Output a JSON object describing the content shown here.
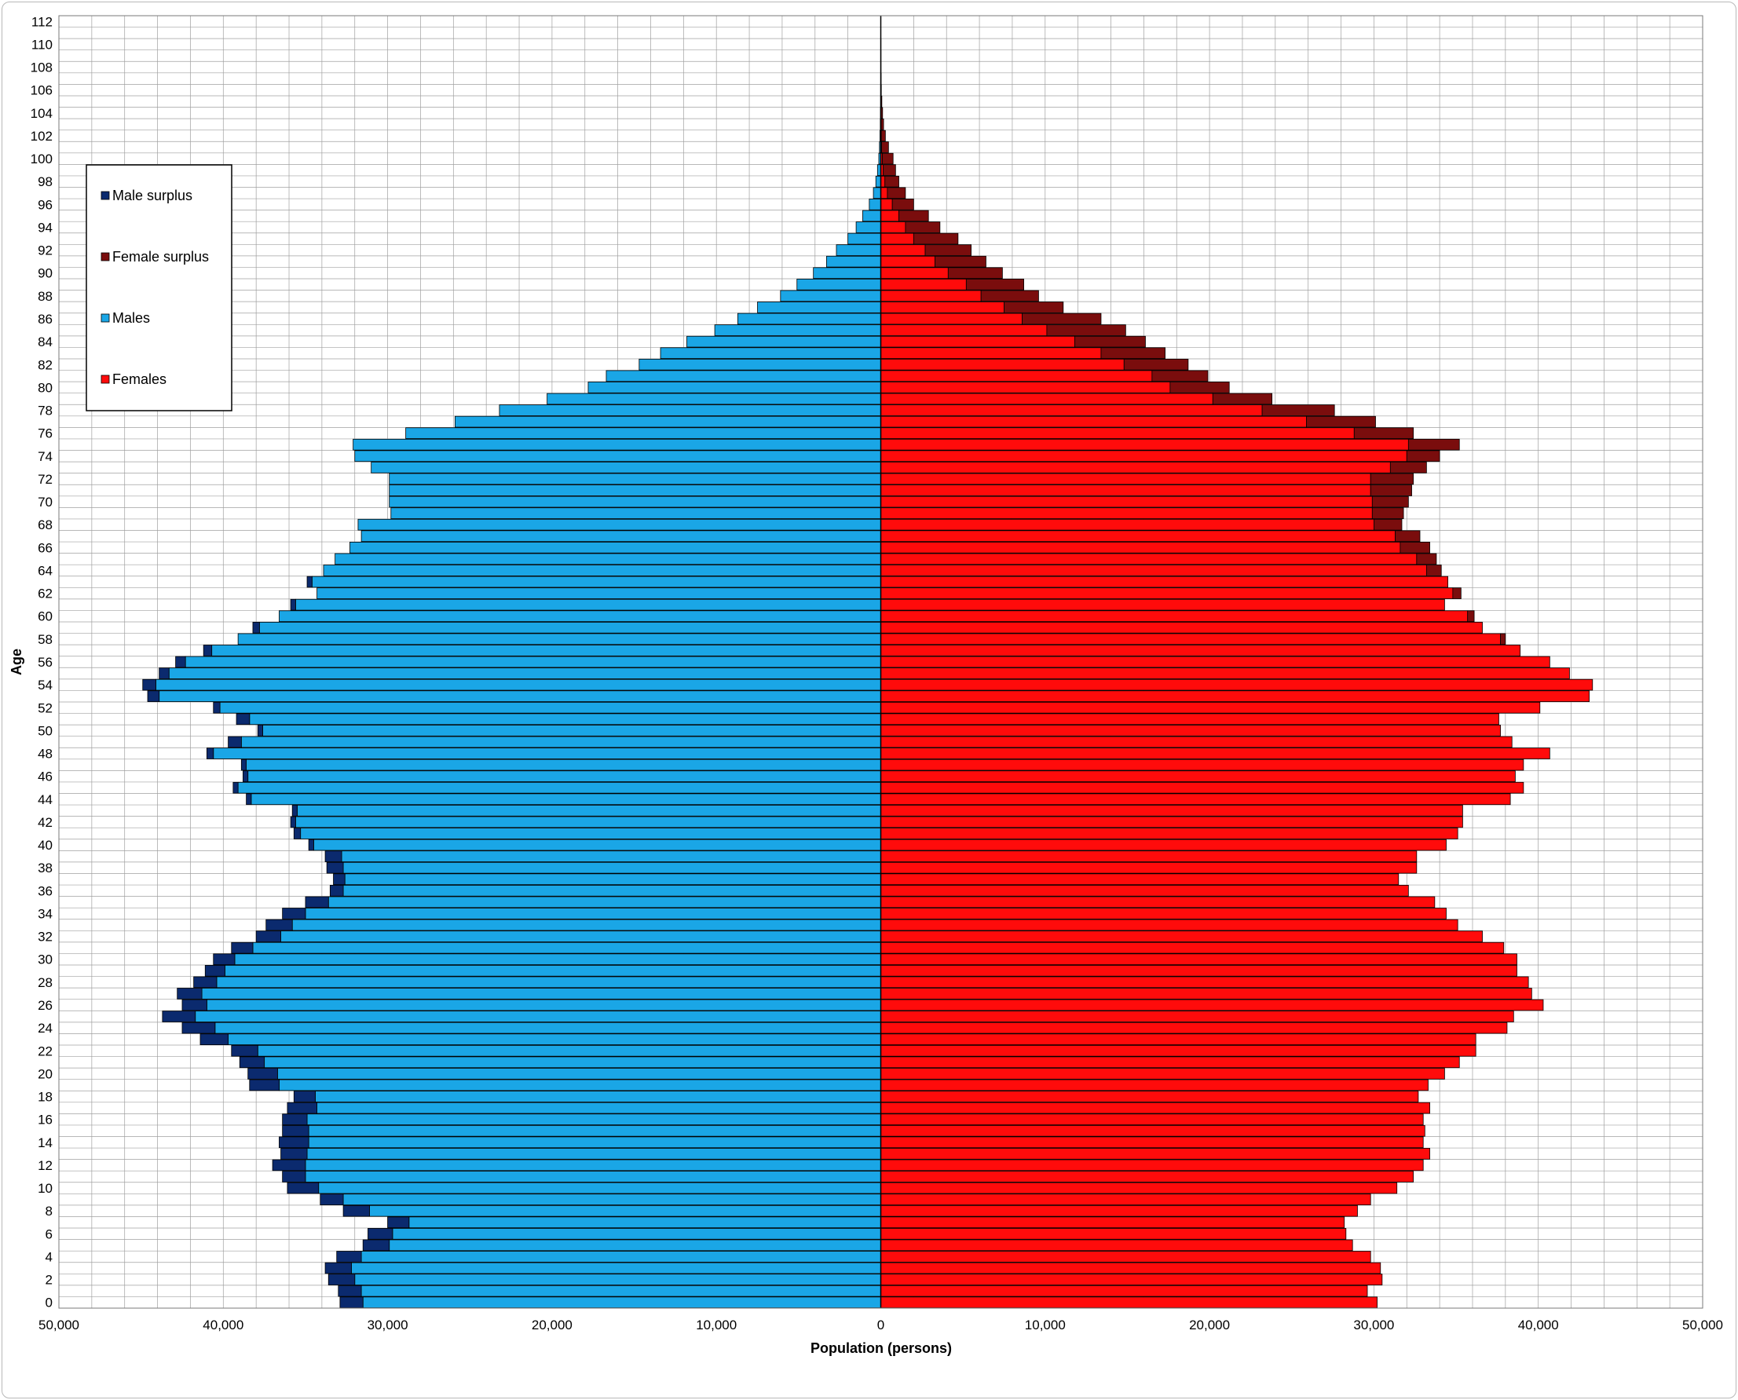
{
  "chart_data": {
    "type": "bar",
    "orientation": "horizontal",
    "layout": "population-pyramid",
    "title": "",
    "xlabel": "Population (persons)",
    "ylabel": "Age",
    "xlim": [
      -50000,
      50000
    ],
    "x_ticks": [
      -50000,
      -40000,
      -30000,
      -20000,
      -10000,
      0,
      10000,
      20000,
      30000,
      40000,
      50000
    ],
    "x_tick_labels": [
      "50,000",
      "40,000",
      "30,000",
      "20,000",
      "10,000",
      "0",
      "10,000",
      "20,000",
      "30,000",
      "40,000",
      "50,000"
    ],
    "y_ticks": [
      0,
      2,
      4,
      6,
      8,
      10,
      12,
      14,
      16,
      18,
      20,
      22,
      24,
      26,
      28,
      30,
      32,
      34,
      36,
      38,
      40,
      42,
      44,
      46,
      48,
      50,
      52,
      54,
      56,
      58,
      60,
      62,
      64,
      66,
      68,
      70,
      72,
      74,
      76,
      78,
      80,
      82,
      84,
      86,
      88,
      90,
      92,
      94,
      96,
      98,
      100,
      102,
      104,
      106,
      108,
      110,
      112
    ],
    "grid": true,
    "legend_position": "left",
    "legend": [
      {
        "label": "Male surplus",
        "color": "#0b2a6e"
      },
      {
        "label": "Female surplus",
        "color": "#7a0d0d"
      },
      {
        "label": "Males",
        "color": "#1aa6e6"
      },
      {
        "label": "Females",
        "color": "#ff0b0b"
      }
    ],
    "colors": {
      "males": "#1aa6e6",
      "females": "#ff0b0b",
      "male_surplus": "#0b2a6e",
      "female_surplus": "#7a0d0d",
      "background": "#ffffff",
      "grid": "#a0a0a0"
    },
    "ages": [
      0,
      1,
      2,
      3,
      4,
      5,
      6,
      7,
      8,
      9,
      10,
      11,
      12,
      13,
      14,
      15,
      16,
      17,
      18,
      19,
      20,
      21,
      22,
      23,
      24,
      25,
      26,
      27,
      28,
      29,
      30,
      31,
      32,
      33,
      34,
      35,
      36,
      37,
      38,
      39,
      40,
      41,
      42,
      43,
      44,
      45,
      46,
      47,
      48,
      49,
      50,
      51,
      52,
      53,
      54,
      55,
      56,
      57,
      58,
      59,
      60,
      61,
      62,
      63,
      64,
      65,
      66,
      67,
      68,
      69,
      70,
      71,
      72,
      73,
      74,
      75,
      76,
      77,
      78,
      79,
      80,
      81,
      82,
      83,
      84,
      85,
      86,
      87,
      88,
      89,
      90,
      91,
      92,
      93,
      94,
      95,
      96,
      97,
      98,
      99,
      100,
      101,
      102,
      103,
      104,
      105,
      106,
      107,
      108,
      109,
      110,
      111,
      112
    ],
    "series": [
      {
        "name": "Males",
        "values": [
          31500,
          31600,
          32000,
          32200,
          31600,
          29900,
          29700,
          28700,
          31100,
          32700,
          34200,
          35000,
          35000,
          34900,
          34800,
          34800,
          34900,
          34300,
          34400,
          36600,
          36700,
          37500,
          37900,
          39700,
          40500,
          41700,
          41000,
          41300,
          40400,
          39900,
          39300,
          38200,
          36500,
          35800,
          35000,
          33600,
          32700,
          32600,
          32700,
          32800,
          34500,
          35300,
          35600,
          35500,
          38300,
          39100,
          38500,
          38600,
          40600,
          38900,
          37600,
          38400,
          40200,
          43900,
          44100,
          43300,
          42300,
          40700,
          39100,
          37800,
          36600,
          35600,
          34300,
          34600,
          33900,
          33200,
          32300,
          31600,
          31800,
          29800,
          29900,
          29900,
          29900,
          31000,
          32000,
          32100,
          28900,
          25900,
          23200,
          20300,
          17800,
          16700,
          14700,
          13400,
          11800,
          10100,
          8700,
          7500,
          6100,
          5100,
          4100,
          3300,
          2700,
          2000,
          1500,
          1100,
          700,
          450,
          300,
          200,
          120,
          80,
          50,
          30,
          20,
          10,
          8,
          5,
          3,
          2,
          1,
          1,
          1
        ]
      },
      {
        "name": "Females",
        "values": [
          30200,
          29600,
          30500,
          30400,
          29800,
          28700,
          28300,
          28200,
          29000,
          29800,
          31400,
          32400,
          33000,
          33400,
          33000,
          33100,
          33000,
          33400,
          32700,
          33300,
          34300,
          35200,
          36200,
          36200,
          38100,
          38500,
          40300,
          39600,
          39400,
          38700,
          38700,
          37900,
          36600,
          35100,
          34400,
          33700,
          32100,
          31500,
          32600,
          32600,
          34400,
          35100,
          35400,
          35400,
          38300,
          39100,
          38600,
          39100,
          40700,
          38400,
          37700,
          37600,
          40100,
          43100,
          43300,
          41900,
          40700,
          38900,
          37700,
          36600,
          35700,
          34300,
          34800,
          34500,
          33200,
          32600,
          31600,
          31300,
          30000,
          29900,
          29900,
          29800,
          29800,
          31000,
          32000,
          32100,
          28800,
          25900,
          23200,
          20200,
          17600,
          16500,
          14800,
          13400,
          11800,
          10100,
          8600,
          7500,
          6100,
          5200,
          4100,
          3300,
          2700,
          2000,
          1500,
          1100,
          700,
          400,
          250,
          150,
          100,
          50,
          30,
          20,
          10,
          5,
          3,
          2,
          1,
          1,
          1,
          1,
          1
        ]
      },
      {
        "name": "Female surplus",
        "values": [
          0,
          0,
          0,
          0,
          0,
          0,
          0,
          0,
          0,
          0,
          0,
          0,
          0,
          0,
          0,
          0,
          0,
          0,
          0,
          0,
          0,
          0,
          0,
          0,
          0,
          0,
          0,
          0,
          0,
          0,
          0,
          0,
          0,
          0,
          0,
          0,
          0,
          0,
          0,
          0,
          0,
          0,
          0,
          0,
          0,
          0,
          0,
          0,
          0,
          0,
          0,
          0,
          0,
          0,
          0,
          0,
          0,
          0,
          300,
          0,
          400,
          0,
          500,
          0,
          900,
          1200,
          1800,
          1500,
          1700,
          1900,
          2200,
          2500,
          2600,
          2200,
          2000,
          3100,
          3600,
          4200,
          4400,
          3600,
          3600,
          3400,
          3900,
          3900,
          4300,
          4800,
          4800,
          3600,
          3500,
          3500,
          3300,
          3100,
          2800,
          2700,
          2100,
          1800,
          1300,
          1100,
          850,
          750,
          650,
          420,
          250,
          150,
          100,
          60,
          30,
          20,
          12,
          10,
          8,
          4,
          3
        ]
      },
      {
        "name": "Male surplus",
        "values": [
          1400,
          1400,
          1600,
          1600,
          1500,
          1600,
          1500,
          1300,
          1600,
          1400,
          1900,
          1400,
          2000,
          1600,
          1800,
          1600,
          1500,
          1800,
          1300,
          1800,
          1800,
          1500,
          1600,
          1700,
          2000,
          2000,
          1500,
          1500,
          1400,
          1200,
          1300,
          1300,
          1500,
          1600,
          1400,
          1400,
          800,
          700,
          1000,
          1000,
          300,
          400,
          300,
          300,
          300,
          300,
          300,
          300,
          400,
          800,
          300,
          800,
          400,
          700,
          800,
          600,
          600,
          500,
          0,
          400,
          0,
          300,
          0,
          300,
          0,
          0,
          0,
          0,
          0,
          0,
          0,
          0,
          0,
          0,
          0,
          0,
          0,
          0,
          0,
          0,
          0,
          0,
          0,
          0,
          0,
          0,
          0,
          0,
          0,
          0,
          0,
          0,
          0,
          0,
          0,
          0,
          0,
          0,
          0,
          0,
          0,
          0,
          0,
          0,
          0,
          0,
          0,
          0,
          0,
          0,
          0,
          0,
          0
        ]
      }
    ]
  }
}
